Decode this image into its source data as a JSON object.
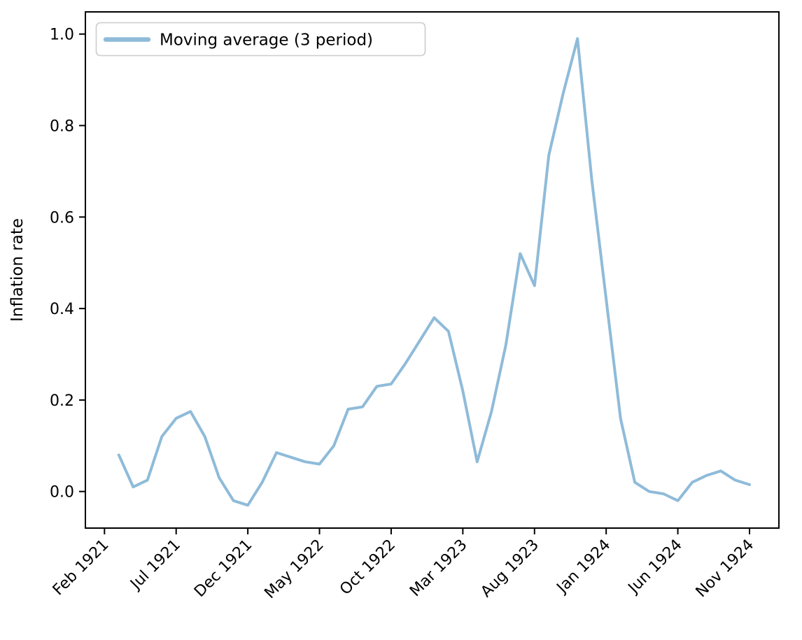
{
  "chart_data": {
    "type": "line",
    "title": "",
    "xlabel": "",
    "ylabel": "Inflation rate",
    "legend": "Moving average (3 period)",
    "legend_position": "upper left",
    "line_color": "#8fbbd9",
    "axis_color": "#000000",
    "legend_border_color": "#cccccc",
    "grid": false,
    "x": [
      "Mar 1921",
      "Apr 1921",
      "May 1921",
      "Jun 1921",
      "Jul 1921",
      "Aug 1921",
      "Sep 1921",
      "Oct 1921",
      "Nov 1921",
      "Dec 1921",
      "Jan 1922",
      "Feb 1922",
      "Mar 1922",
      "Apr 1922",
      "May 1922",
      "Jun 1922",
      "Jul 1922",
      "Aug 1922",
      "Sep 1922",
      "Oct 1922",
      "Nov 1922",
      "Dec 1922",
      "Jan 1923",
      "Feb 1923",
      "Mar 1923",
      "Apr 1923",
      "May 1923",
      "Jun 1923",
      "Jul 1923",
      "Aug 1923",
      "Sep 1923",
      "Oct 1923",
      "Nov 1923",
      "Dec 1923",
      "Jan 1924",
      "Feb 1924",
      "Mar 1924",
      "Apr 1924",
      "May 1924",
      "Jun 1924",
      "Jul 1924",
      "Aug 1924",
      "Sep 1924",
      "Oct 1924",
      "Nov 1924"
    ],
    "values": [
      0.08,
      0.01,
      0.025,
      0.12,
      0.16,
      0.175,
      0.12,
      0.03,
      -0.02,
      -0.03,
      0.02,
      0.085,
      0.075,
      0.065,
      0.06,
      0.1,
      0.18,
      0.185,
      0.23,
      0.235,
      0.28,
      0.33,
      0.38,
      0.35,
      0.22,
      0.065,
      0.175,
      0.32,
      0.52,
      0.45,
      0.735,
      0.87,
      0.99,
      0.68,
      0.42,
      0.16,
      0.02,
      0.0,
      -0.005,
      -0.02,
      0.02,
      0.035,
      0.045,
      0.025,
      0.015
    ],
    "x_tick_labels": [
      "Feb 1921",
      "Jul 1921",
      "Dec 1921",
      "May 1922",
      "Oct 1922",
      "Mar 1923",
      "Aug 1923",
      "Jan 1924",
      "Jun 1924",
      "Nov 1924"
    ],
    "x_tick_label_rotation_deg": 45,
    "y_ticks": [
      0.0,
      0.2,
      0.4,
      0.6,
      0.8,
      1.0
    ],
    "ylim": [
      -0.08,
      1.05
    ]
  }
}
